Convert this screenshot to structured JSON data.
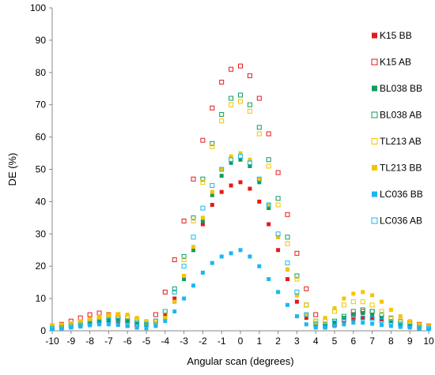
{
  "chart_data": {
    "type": "scatter",
    "title": "",
    "xlabel": "Angular scan (degrees)",
    "ylabel": "DE (%)",
    "xlim": [
      -10,
      10
    ],
    "ylim": [
      0,
      100
    ],
    "x_ticks": [
      -10,
      -9,
      -8,
      -7,
      -6,
      -5,
      -4,
      -3,
      -2,
      -1,
      0,
      1,
      2,
      3,
      4,
      5,
      6,
      7,
      8,
      9,
      10
    ],
    "y_ticks": [
      0,
      10,
      20,
      30,
      40,
      50,
      60,
      70,
      80,
      90,
      100
    ],
    "grid": false,
    "legend_position": "right",
    "x": [
      -10,
      -9.5,
      -9,
      -8.5,
      -8,
      -7.5,
      -7,
      -6.5,
      -6,
      -5.5,
      -5,
      -4.5,
      -4,
      -3.5,
      -3,
      -2.5,
      -2,
      -1.5,
      -1,
      -0.5,
      0,
      0.5,
      1,
      1.5,
      2,
      2.5,
      3,
      3.5,
      4,
      4.5,
      5,
      5.5,
      6,
      6.5,
      7,
      7.5,
      8,
      8.5,
      9,
      9.5,
      10
    ],
    "series": [
      {
        "name": "K15 BB",
        "marker": "filled",
        "color": "#e31a1c",
        "values": [
          1,
          1.5,
          2,
          2.5,
          3,
          3,
          2.8,
          2.2,
          1.5,
          1,
          1,
          2.5,
          5,
          10,
          17,
          25,
          33,
          39,
          43,
          45,
          46,
          44,
          40,
          33,
          25,
          16,
          9,
          4,
          1.5,
          1,
          1.5,
          2.5,
          3.5,
          4,
          4,
          3.5,
          3,
          2.2,
          1.6,
          1.2,
          1
        ]
      },
      {
        "name": "K15 AB",
        "marker": "open",
        "color": "#e31a1c",
        "values": [
          1.5,
          2,
          3,
          4,
          5,
          5.5,
          5,
          4,
          3,
          2,
          2,
          5,
          12,
          22,
          34,
          47,
          59,
          69,
          77,
          81,
          82,
          79,
          72,
          61,
          49,
          36,
          24,
          13,
          5,
          2,
          2,
          3.5,
          5,
          6,
          6,
          5,
          4,
          3,
          2.5,
          2,
          1.5
        ]
      },
      {
        "name": "BL038 BB",
        "marker": "filled",
        "color": "#0f9d58",
        "values": [
          1,
          1.2,
          1.6,
          2,
          2.6,
          3.2,
          3.5,
          3.4,
          3,
          2.4,
          1.8,
          2,
          4,
          9,
          16,
          25,
          34,
          42,
          48,
          52,
          53,
          51,
          46,
          38,
          29,
          19,
          11,
          5,
          2,
          1.5,
          2.5,
          4,
          5,
          5.5,
          5,
          4,
          3,
          2.2,
          1.6,
          1.2,
          1
        ]
      },
      {
        "name": "BL038 AB",
        "marker": "open",
        "color": "#0f9d58",
        "values": [
          1.2,
          1.5,
          2,
          2.5,
          3.2,
          3.8,
          4.2,
          4.4,
          4,
          3.2,
          2.5,
          3,
          6,
          13,
          23,
          35,
          47,
          58,
          67,
          72,
          73,
          70,
          63,
          53,
          41,
          29,
          17,
          8,
          3,
          2,
          3,
          4.5,
          6,
          6.5,
          6,
          5,
          3.8,
          2.8,
          2,
          1.5,
          1.2
        ]
      },
      {
        "name": "TL213 AB",
        "marker": "open",
        "color": "#f5c400",
        "values": [
          1.5,
          1.8,
          2.2,
          2.8,
          3.5,
          4.2,
          4.8,
          5,
          4.5,
          3.5,
          2.5,
          2.5,
          5,
          12,
          22,
          34,
          46,
          57,
          65,
          70,
          71,
          68,
          61,
          51,
          39,
          27,
          16,
          8,
          3,
          3,
          6,
          8,
          9,
          9,
          8,
          6,
          4,
          3,
          2,
          1.5,
          1.2
        ]
      },
      {
        "name": "TL213 BB",
        "marker": "filled",
        "color": "#f5c400",
        "values": [
          1.5,
          1.8,
          2.2,
          2.8,
          3.5,
          4.2,
          4.8,
          5.2,
          5,
          4,
          3,
          2.5,
          4,
          9,
          17,
          26,
          35,
          43,
          50,
          54,
          55,
          53,
          47,
          39,
          29,
          19,
          11,
          5,
          2.5,
          4,
          7,
          10,
          11.5,
          12,
          11,
          9,
          6.5,
          4.5,
          3,
          2,
          1.5
        ]
      },
      {
        "name": "LC036 BB",
        "marker": "filled",
        "color": "#1ab8f0",
        "values": [
          0.5,
          0.7,
          1,
          1.3,
          1.7,
          2,
          2,
          1.8,
          1.5,
          1,
          0.8,
          1.5,
          3,
          6,
          10,
          14,
          18,
          21,
          23,
          24,
          25,
          23,
          20,
          16,
          12,
          8,
          4.5,
          2,
          1,
          1,
          1.5,
          2,
          2.5,
          2.5,
          2.2,
          1.8,
          1.5,
          1.2,
          1,
          0.7,
          0.5
        ]
      },
      {
        "name": "LC036 AB",
        "marker": "open",
        "color": "#1ab8f0",
        "values": [
          0.8,
          1,
          1.4,
          1.8,
          2.3,
          2.8,
          3.2,
          3.3,
          3,
          2.5,
          2,
          3,
          6,
          12,
          20,
          29,
          38,
          45,
          50,
          53,
          54,
          52,
          47,
          39,
          30,
          21,
          12,
          5,
          2,
          1.5,
          2.5,
          3.5,
          4,
          4,
          3.8,
          3.2,
          2.6,
          2,
          1.5,
          1.1,
          0.8
        ]
      }
    ]
  }
}
